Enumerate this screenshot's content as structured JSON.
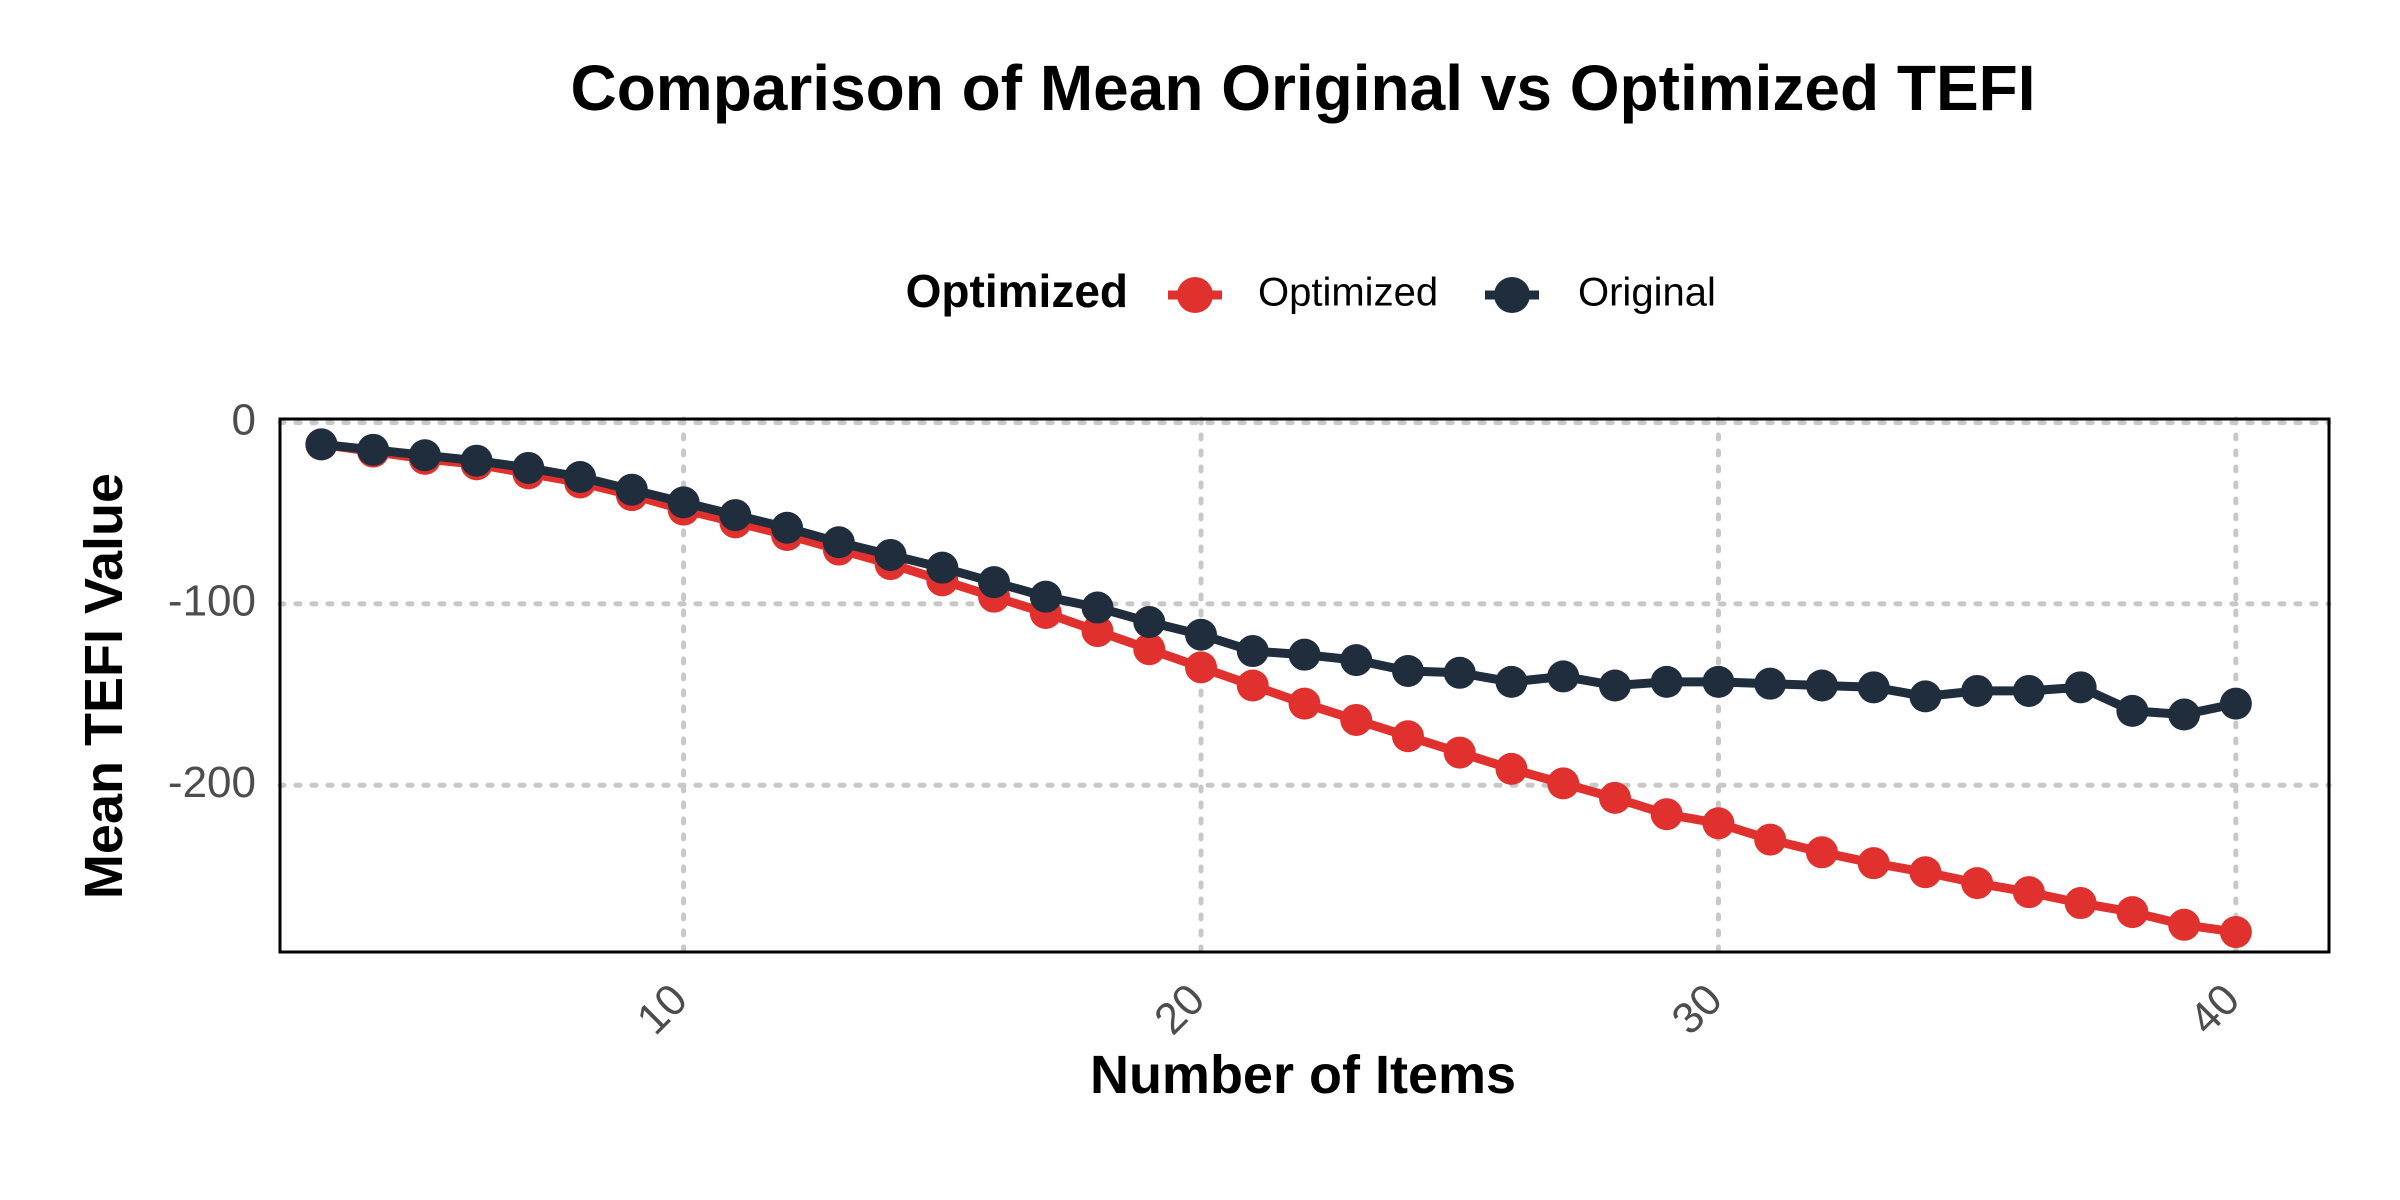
{
  "chart_data": {
    "type": "line",
    "title": "Comparison of Mean Original vs Optimized TEFI",
    "xlabel": "Number of Items",
    "ylabel": "Mean TEFI Value",
    "xlim": [
      2.2,
      41.8
    ],
    "ylim": [
      -292,
      2
    ],
    "x_ticks": [
      10,
      20,
      30,
      40
    ],
    "y_ticks": [
      0,
      -100,
      -200
    ],
    "grid": true,
    "legend": {
      "title": "Optimized",
      "position": "top",
      "entries": [
        {
          "name": "Optimized",
          "color": "#e0312e"
        },
        {
          "name": "Original",
          "color": "#1f2d3d"
        }
      ]
    },
    "x": [
      3,
      4,
      5,
      6,
      7,
      8,
      9,
      10,
      11,
      12,
      13,
      14,
      15,
      16,
      17,
      18,
      19,
      20,
      21,
      22,
      23,
      24,
      25,
      26,
      27,
      28,
      29,
      30,
      31,
      32,
      33,
      34,
      35,
      36,
      37,
      38,
      39,
      40
    ],
    "series": [
      {
        "name": "Optimized",
        "color": "#e0312e",
        "values": [
          -12,
          -16,
          -20,
          -23,
          -28,
          -33,
          -40,
          -48,
          -55,
          -62,
          -70,
          -78,
          -87,
          -96,
          -105,
          -115,
          -125,
          -135,
          -145,
          -155,
          -164,
          -173,
          -182,
          -191,
          -199,
          -207,
          -216,
          -221,
          -230,
          -237,
          -243,
          -248,
          -254,
          -259,
          -265,
          -270,
          -277,
          -281
        ]
      },
      {
        "name": "Original",
        "color": "#1f2d3d",
        "values": [
          -12,
          -15,
          -18,
          -21,
          -25,
          -30,
          -37,
          -44,
          -51,
          -58,
          -66,
          -73,
          -80,
          -88,
          -96,
          -102,
          -110,
          -117,
          -126,
          -128,
          -131,
          -137,
          -138,
          -143,
          -140,
          -145,
          -143,
          -143,
          -144,
          -145,
          -146,
          -151,
          -148,
          -148,
          -146,
          -159,
          -161,
          -155
        ]
      }
    ]
  }
}
